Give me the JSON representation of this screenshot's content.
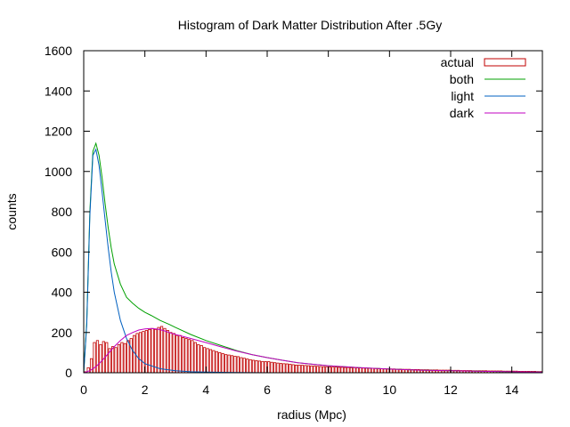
{
  "chart_data": {
    "type": "bar",
    "title": "Histogram of Dark Matter Distribution After .5Gy",
    "xlabel": "radius (Mpc)",
    "ylabel": "counts",
    "xlim": [
      0,
      15
    ],
    "ylim": [
      0,
      1600
    ],
    "xticks": [
      0,
      2,
      4,
      6,
      8,
      10,
      12,
      14
    ],
    "yticks": [
      0,
      200,
      400,
      600,
      800,
      1000,
      1200,
      1400,
      1600
    ],
    "legend_position": "top-right",
    "bin_width": 0.1,
    "series": [
      {
        "name": "actual",
        "kind": "histogram",
        "color": "#c00000",
        "x": [
          0.05,
          0.15,
          0.25,
          0.35,
          0.45,
          0.55,
          0.65,
          0.75,
          0.85,
          0.95,
          1.05,
          1.15,
          1.25,
          1.35,
          1.45,
          1.55,
          1.65,
          1.75,
          1.85,
          1.95,
          2.05,
          2.15,
          2.25,
          2.35,
          2.45,
          2.55,
          2.65,
          2.75,
          2.85,
          2.95,
          3.05,
          3.15,
          3.25,
          3.35,
          3.45,
          3.55,
          3.65,
          3.75,
          3.85,
          3.95,
          4.05,
          4.15,
          4.25,
          4.35,
          4.45,
          4.55,
          4.65,
          4.75,
          4.85,
          4.95,
          5.05,
          5.15,
          5.25,
          5.35,
          5.45,
          5.55,
          5.65,
          5.75,
          5.85,
          5.95,
          6.05,
          6.15,
          6.25,
          6.35,
          6.45,
          6.55,
          6.65,
          6.75,
          6.85,
          6.95,
          7.05,
          7.15,
          7.25,
          7.35,
          7.45,
          7.55,
          7.65,
          7.75,
          7.85,
          7.95,
          8.05,
          8.15,
          8.25,
          8.35,
          8.45,
          8.55,
          8.65,
          8.75,
          8.85,
          8.95,
          9.05,
          9.15,
          9.25,
          9.35,
          9.45,
          9.55,
          9.65,
          9.75,
          9.85,
          9.95,
          10.05,
          10.15,
          10.25,
          10.35,
          10.45,
          10.55,
          10.65,
          10.75,
          10.85,
          10.95,
          11.05,
          11.15,
          11.25,
          11.35,
          11.45,
          11.55,
          11.65,
          11.75,
          11.85,
          11.95,
          12.05,
          12.15,
          12.25,
          12.35,
          12.45,
          12.55,
          12.65,
          12.75,
          12.85,
          12.95,
          13.05,
          13.15,
          13.25,
          13.35,
          13.45,
          13.55,
          13.65,
          13.75,
          13.85,
          13.95,
          14.05,
          14.15,
          14.25,
          14.35,
          14.45,
          14.55,
          14.65,
          14.75,
          14.85,
          14.95
        ],
        "values": [
          5,
          25,
          70,
          150,
          160,
          140,
          155,
          150,
          120,
          130,
          125,
          140,
          150,
          145,
          160,
          170,
          185,
          195,
          200,
          205,
          210,
          215,
          220,
          215,
          225,
          230,
          220,
          210,
          200,
          195,
          185,
          185,
          175,
          170,
          165,
          160,
          150,
          140,
          135,
          125,
          120,
          115,
          110,
          105,
          100,
          95,
          90,
          88,
          85,
          82,
          80,
          75,
          72,
          68,
          65,
          62,
          60,
          58,
          56,
          55,
          55,
          52,
          50,
          48,
          46,
          45,
          44,
          42,
          40,
          38,
          38,
          37,
          36,
          35,
          34,
          33,
          32,
          31,
          30,
          30,
          29,
          28,
          28,
          27,
          27,
          26,
          26,
          25,
          25,
          24,
          24,
          23,
          23,
          22,
          22,
          21,
          21,
          20,
          20,
          19,
          19,
          19,
          18,
          18,
          17,
          17,
          17,
          16,
          16,
          16,
          15,
          15,
          15,
          14,
          14,
          14,
          13,
          13,
          13,
          13,
          12,
          12,
          12,
          11,
          11,
          11,
          11,
          10,
          10,
          10,
          10,
          10,
          9,
          9,
          9,
          9,
          9,
          8,
          8,
          8,
          8,
          8,
          7,
          7,
          7,
          7,
          7,
          7,
          6,
          6
        ]
      },
      {
        "name": "both",
        "kind": "line",
        "color": "#00a000",
        "x": [
          0,
          0.1,
          0.2,
          0.3,
          0.4,
          0.5,
          0.6,
          0.7,
          0.8,
          0.9,
          1.0,
          1.2,
          1.4,
          1.6,
          1.8,
          2.0,
          2.2,
          2.5,
          2.8,
          3.0,
          3.5,
          4.0,
          4.5,
          5.0,
          5.5,
          6.0,
          6.5,
          7.0,
          7.5,
          8.0,
          9.0,
          10.0,
          11.0,
          12.0,
          13.0,
          14.0,
          15.0
        ],
        "values": [
          0,
          250,
          800,
          1100,
          1140,
          1080,
          970,
          840,
          720,
          620,
          540,
          440,
          375,
          345,
          320,
          300,
          285,
          260,
          240,
          225,
          190,
          160,
          135,
          110,
          90,
          75,
          62,
          50,
          42,
          35,
          25,
          18,
          13,
          10,
          7,
          5,
          3
        ]
      },
      {
        "name": "light",
        "kind": "line",
        "color": "#0060c0",
        "x": [
          0,
          0.1,
          0.2,
          0.3,
          0.4,
          0.5,
          0.6,
          0.7,
          0.8,
          0.9,
          1.0,
          1.2,
          1.4,
          1.6,
          1.8,
          2.0,
          2.5,
          3.0,
          3.5,
          4.0,
          5.0,
          6.0,
          8.0,
          10.0,
          15.0
        ],
        "values": [
          0,
          240,
          780,
          1080,
          1110,
          1030,
          900,
          760,
          620,
          500,
          400,
          260,
          170,
          110,
          70,
          45,
          20,
          10,
          5,
          3,
          1,
          0,
          0,
          0,
          0
        ]
      },
      {
        "name": "dark",
        "kind": "line",
        "color": "#c000c0",
        "x": [
          0,
          0.2,
          0.4,
          0.6,
          0.8,
          1.0,
          1.2,
          1.4,
          1.6,
          1.8,
          2.0,
          2.2,
          2.4,
          2.6,
          2.8,
          3.0,
          3.5,
          4.0,
          4.5,
          5.0,
          5.5,
          6.0,
          6.5,
          7.0,
          7.5,
          8.0,
          9.0,
          10.0,
          11.0,
          12.0,
          13.0,
          14.0,
          15.0
        ],
        "values": [
          0,
          10,
          30,
          60,
          95,
          130,
          160,
          185,
          200,
          212,
          218,
          220,
          217,
          210,
          200,
          190,
          170,
          150,
          128,
          108,
          90,
          75,
          62,
          50,
          42,
          35,
          25,
          18,
          13,
          10,
          7,
          5,
          3
        ]
      }
    ]
  }
}
